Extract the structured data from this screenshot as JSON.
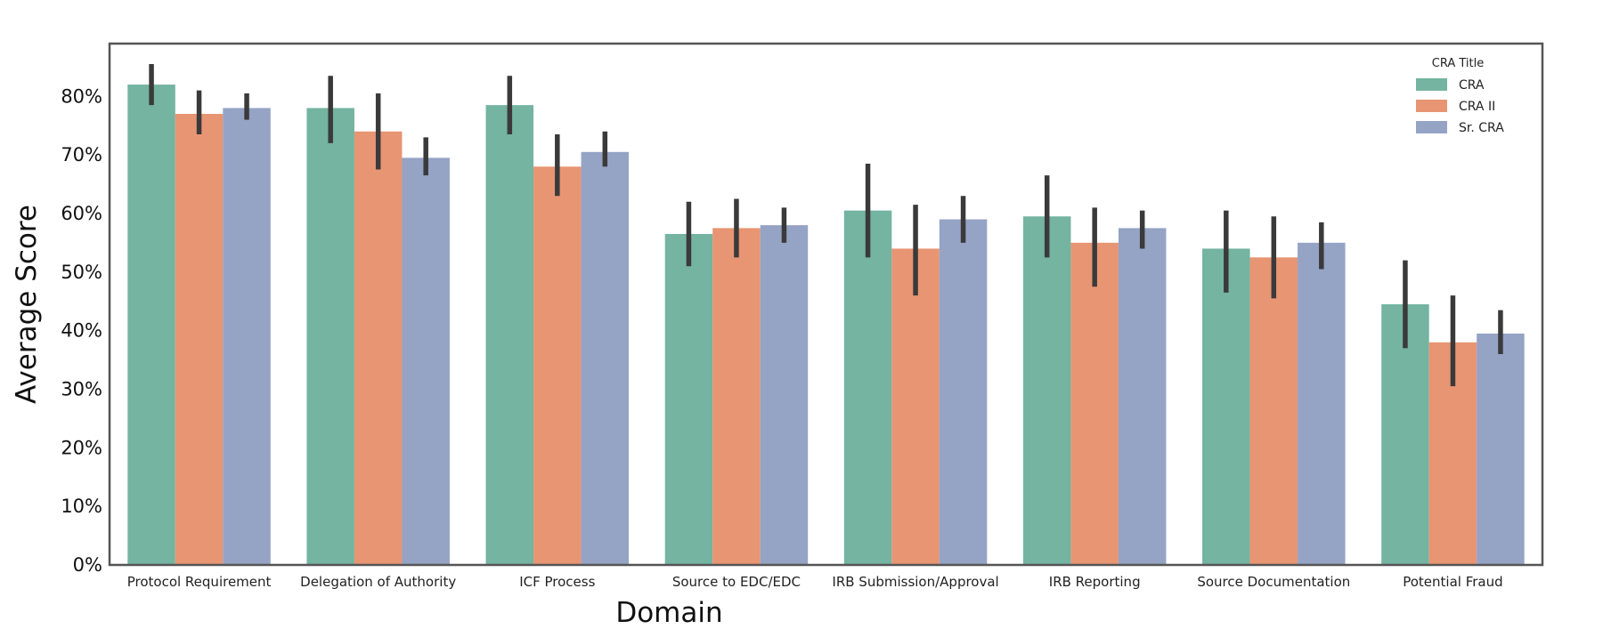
{
  "chart_data": {
    "type": "bar",
    "xlabel": "Domain",
    "ylabel": "Average Score",
    "ylim": [
      0,
      0.89
    ],
    "yticks": [
      "0%",
      "10%",
      "20%",
      "30%",
      "40%",
      "50%",
      "60%",
      "70%",
      "80%"
    ],
    "yticks_values": [
      0,
      0.1,
      0.2,
      0.3,
      0.4,
      0.5,
      0.6,
      0.7,
      0.8
    ],
    "grid": false,
    "legend": {
      "title": "CRA Title",
      "position": "top-right"
    },
    "categories": [
      "Protocol Requirement",
      "Delegation of Authority",
      "ICF Process",
      "Source to EDC/EDC",
      "IRB Submission/Approval",
      "IRB Reporting",
      "Source Documentation",
      "Potential Fraud"
    ],
    "series": [
      {
        "name": "CRA",
        "color": "#74b4a0",
        "values": [
          0.82,
          0.78,
          0.785,
          0.565,
          0.605,
          0.595,
          0.54,
          0.445
        ],
        "error_low": [
          0.785,
          0.72,
          0.735,
          0.51,
          0.525,
          0.525,
          0.465,
          0.37
        ],
        "error_high": [
          0.855,
          0.835,
          0.835,
          0.62,
          0.685,
          0.665,
          0.605,
          0.52
        ]
      },
      {
        "name": "CRA II",
        "color": "#e89573",
        "values": [
          0.77,
          0.74,
          0.68,
          0.575,
          0.54,
          0.55,
          0.525,
          0.38
        ],
        "error_low": [
          0.735,
          0.675,
          0.63,
          0.525,
          0.46,
          0.475,
          0.455,
          0.305
        ],
        "error_high": [
          0.81,
          0.805,
          0.735,
          0.625,
          0.615,
          0.61,
          0.595,
          0.46
        ]
      },
      {
        "name": "Sr. CRA",
        "color": "#95a3c5",
        "values": [
          0.78,
          0.695,
          0.705,
          0.58,
          0.59,
          0.575,
          0.55,
          0.395
        ],
        "error_low": [
          0.76,
          0.665,
          0.68,
          0.55,
          0.55,
          0.54,
          0.505,
          0.36
        ],
        "error_high": [
          0.805,
          0.73,
          0.74,
          0.61,
          0.63,
          0.605,
          0.585,
          0.435
        ]
      }
    ]
  }
}
